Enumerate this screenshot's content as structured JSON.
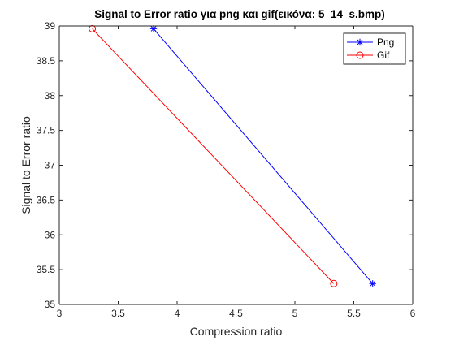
{
  "chart_data": {
    "type": "line",
    "title": "Signal to Error ratio για png και gif(εικόνα: 5_14_s.bmp)",
    "xlabel": "Compression ratio",
    "ylabel": "Signal to Error ratio",
    "xlim": [
      3,
      6
    ],
    "ylim": [
      35,
      39
    ],
    "xticks": [
      3,
      3.5,
      4,
      4.5,
      5,
      5.5,
      6
    ],
    "yticks": [
      35,
      35.5,
      36,
      36.5,
      37,
      37.5,
      38,
      38.5,
      39
    ],
    "xtick_labels": [
      "3",
      "3.5",
      "4",
      "4.5",
      "5",
      "5.5",
      "6"
    ],
    "ytick_labels": [
      "35",
      "35.5",
      "36",
      "36.5",
      "37",
      "37.5",
      "38",
      "38.5",
      "39"
    ],
    "grid": false,
    "legend_position": "top-right",
    "series": [
      {
        "name": "Png",
        "color": "#0000ff",
        "marker": "asterisk",
        "x": [
          3.8,
          5.66
        ],
        "y": [
          38.96,
          35.3
        ]
      },
      {
        "name": "Gif",
        "color": "#ff0000",
        "marker": "circle",
        "x": [
          3.28,
          5.33
        ],
        "y": [
          38.96,
          35.3
        ]
      }
    ]
  }
}
